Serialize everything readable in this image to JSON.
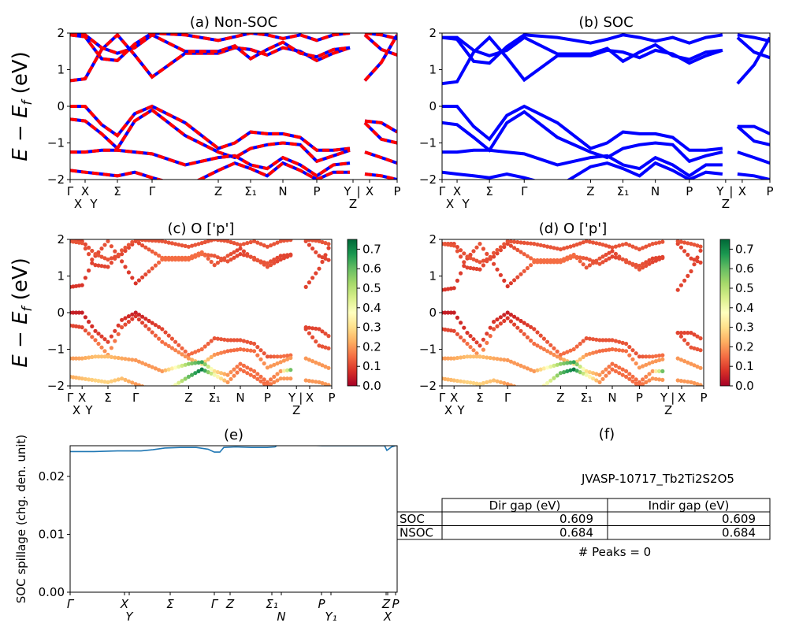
{
  "chart_data": [
    {
      "id": "a",
      "type": "line",
      "title": "(a) Non-SOC",
      "ylabel": {
        "main": "E − E",
        "sub": "f",
        "tail": " (eV)"
      },
      "ylim": [
        -2,
        2
      ],
      "yticks": [
        {
          "v": -2,
          "t": "−2"
        },
        {
          "v": -1,
          "t": "−1"
        },
        {
          "v": 0,
          "t": "0"
        },
        {
          "v": 1,
          "t": "1"
        },
        {
          "v": 2,
          "t": "2"
        }
      ],
      "xlim": [
        0,
        4.15
      ],
      "colors": {
        "line": "#0000ff",
        "dash": "#ff0000"
      },
      "kpath": "main",
      "bands": "nsoc"
    },
    {
      "id": "b",
      "type": "line",
      "title": "(b) SOC",
      "ylim": [
        -2,
        2
      ],
      "yticks": [
        {
          "v": -2,
          "t": "−2"
        },
        {
          "v": -1,
          "t": "−1"
        },
        {
          "v": 0,
          "t": "0"
        },
        {
          "v": 1,
          "t": "1"
        },
        {
          "v": 2,
          "t": "2"
        }
      ],
      "xlim": [
        0,
        4.15
      ],
      "colors": {
        "line": "#0000ff"
      },
      "kpath": "main",
      "bands": "soc"
    },
    {
      "id": "c",
      "type": "scatter",
      "title": "(c)  O ['p']",
      "ylabel": {
        "main": "E − E",
        "sub": "f",
        "tail": " (eV)"
      },
      "ylim": [
        -2,
        2
      ],
      "yticks": [
        {
          "v": -2,
          "t": "−2"
        },
        {
          "v": -1,
          "t": "−1"
        },
        {
          "v": 0,
          "t": "0"
        },
        {
          "v": 1,
          "t": "1"
        },
        {
          "v": 2,
          "t": "2"
        }
      ],
      "xlim": [
        0,
        4.15
      ],
      "kpath": "main",
      "bands": "nsoc",
      "colormap": "RdYlGn",
      "clim": [
        0,
        0.75
      ],
      "cticks": [
        "0.0",
        "0.1",
        "0.2",
        "0.3",
        "0.4",
        "0.5",
        "0.6",
        "0.7"
      ]
    },
    {
      "id": "d",
      "type": "scatter",
      "title": "(d) O ['p']",
      "ylim": [
        -2,
        2
      ],
      "yticks": [
        {
          "v": -2,
          "t": "−2"
        },
        {
          "v": -1,
          "t": "−1"
        },
        {
          "v": 0,
          "t": "0"
        },
        {
          "v": 1,
          "t": "1"
        },
        {
          "v": 2,
          "t": "2"
        }
      ],
      "xlim": [
        0,
        4.15
      ],
      "kpath": "main",
      "bands": "soc",
      "colormap": "RdYlGn",
      "clim": [
        0,
        0.75
      ],
      "cticks": [
        "0.0",
        "0.1",
        "0.2",
        "0.3",
        "0.4",
        "0.5",
        "0.6",
        "0.7"
      ]
    },
    {
      "id": "e",
      "type": "line",
      "title": "(e)",
      "ylabel": "SOC spillage (chg. den. unit)",
      "ylim": [
        0,
        0.0253
      ],
      "yticks": [
        {
          "v": 0,
          "t": "0.00"
        },
        {
          "v": 0.01,
          "t": "0.01"
        },
        {
          "v": 0.02,
          "t": "0.02"
        }
      ],
      "xlim": [
        0,
        4.15
      ],
      "color": "#1f77b4",
      "xticks": [
        {
          "k": 0,
          "t": "Γ"
        },
        {
          "k": 0.69,
          "t": "X"
        },
        {
          "k": 0.75,
          "t": "Y"
        },
        {
          "k": 1.27,
          "t": "Σ"
        },
        {
          "k": 1.83,
          "t": "Γ"
        },
        {
          "k": 2.03,
          "t": "Z"
        },
        {
          "k": 2.56,
          "t": "Σ₁"
        },
        {
          "k": 2.68,
          "t": "N"
        },
        {
          "k": 3.19,
          "t": "P"
        },
        {
          "k": 3.31,
          "t": "Y₁"
        },
        {
          "k": 4.01,
          "t": "Z"
        },
        {
          "k": 4.03,
          "t": "X"
        },
        {
          "k": 4.13,
          "t": "P"
        }
      ],
      "x": [
        0,
        0.3,
        0.6,
        0.9,
        1.05,
        1.2,
        1.4,
        1.6,
        1.75,
        1.83,
        1.9,
        1.95,
        2.1,
        2.3,
        2.5,
        2.6,
        2.65,
        2.8,
        3.0,
        3.2,
        3.4,
        3.6,
        3.8,
        3.99,
        4.02,
        4.08,
        4.15
      ],
      "y": [
        0.0243,
        0.0243,
        0.0244,
        0.0244,
        0.0246,
        0.0249,
        0.025,
        0.025,
        0.0247,
        0.0242,
        0.0242,
        0.025,
        0.0251,
        0.025,
        0.025,
        0.0251,
        0.0256,
        0.0255,
        0.0254,
        0.0253,
        0.0253,
        0.0253,
        0.0253,
        0.0253,
        0.0245,
        0.0251,
        0.0254
      ]
    },
    {
      "id": "f",
      "type": "table",
      "title": "(f)",
      "material": "JVASP-10717_Tb2Ti2S2O5",
      "columns": [
        "Dir gap (eV)",
        "Indir gap (eV)"
      ],
      "rows": [
        {
          "label": "SOC",
          "values": [
            "0.609",
            "0.609"
          ]
        },
        {
          "label": "NSOC",
          "values": [
            "0.684",
            "0.684"
          ]
        }
      ],
      "footer": "# Peaks = 0"
    }
  ],
  "kpaths": {
    "main": [
      {
        "k": 0,
        "t": "Γ",
        "tick": true
      },
      {
        "k": 0.1,
        "t": "X",
        "tick": false
      },
      {
        "k": 0.19,
        "t": "X",
        "tick": true
      },
      {
        "k": 0.3,
        "t": "Y",
        "tick": false
      },
      {
        "k": 0.6,
        "t": "Σ",
        "tick": true
      },
      {
        "k": 1.04,
        "t": "Γ",
        "tick": true
      },
      {
        "k": 1.88,
        "t": "Z",
        "tick": true
      },
      {
        "k": 2.29,
        "t": "Σ₁",
        "tick": true
      },
      {
        "k": 2.7,
        "t": "N",
        "tick": true
      },
      {
        "k": 3.13,
        "t": "P",
        "tick": true
      },
      {
        "k": 3.52,
        "t": "Y",
        "tick": false
      },
      {
        "k": 3.59,
        "t": "Z",
        "tick": true
      },
      {
        "k": 3.66,
        "t": "|",
        "tick": false
      },
      {
        "k": 3.8,
        "t": "X",
        "tick": true
      },
      {
        "k": 4.15,
        "t": "P",
        "tick": true
      }
    ]
  },
  "band_k": [
    0,
    0.19,
    0.4,
    0.6,
    0.82,
    1.04,
    1.46,
    1.88,
    2.09,
    2.29,
    2.5,
    2.7,
    2.92,
    3.13,
    3.34,
    3.55,
    3.65,
    3.74,
    3.95,
    4.15
  ],
  "bands": {
    "nsoc": [
      {
        "e": [
          0.7,
          0.75,
          1.55,
          1.95,
          1.4,
          0.8,
          1.45,
          1.45,
          1.6,
          1.55,
          1.4,
          1.6,
          1.5,
          1.25,
          1.45,
          1.6,
          null,
          0.7,
          1.2,
          1.95
        ],
        "w": [
          0.08,
          0.08,
          0.1,
          0.12,
          0.1,
          0.08,
          0.15,
          0.15,
          0.15,
          0.12,
          0.12,
          0.1,
          0.12,
          0.12,
          0.1,
          0.1,
          null,
          0.1,
          0.1,
          0.1
        ]
      },
      {
        "e": [
          1.95,
          1.95,
          1.6,
          1.45,
          1.6,
          1.95,
          1.5,
          1.5,
          1.65,
          1.3,
          1.55,
          1.75,
          1.45,
          1.35,
          1.55,
          1.6,
          null,
          1.95,
          1.55,
          1.4
        ],
        "w": [
          0.1,
          0.1,
          0.12,
          0.12,
          0.1,
          0.1,
          0.15,
          0.15,
          0.15,
          0.12,
          0.12,
          0.1,
          0.12,
          0.12,
          0.1,
          0.1,
          null,
          0.1,
          0.1,
          0.1
        ]
      },
      {
        "e": [
          1.95,
          1.9,
          1.3,
          1.25,
          1.7,
          2.0,
          1.95,
          1.8,
          1.9,
          2.0,
          1.95,
          1.85,
          1.95,
          1.8,
          1.95,
          2.0,
          null,
          2.0,
          1.95,
          1.85
        ],
        "w": [
          0.12,
          0.12,
          0.1,
          0.1,
          0.12,
          0.12,
          0.12,
          0.12,
          0.12,
          0.12,
          0.12,
          0.12,
          0.12,
          0.12,
          0.12,
          0.12,
          null,
          0.12,
          0.12,
          0.12
        ]
      },
      {
        "e": [
          0.0,
          0.0,
          -0.5,
          -0.8,
          -0.2,
          0.0,
          -0.45,
          -1.15,
          -1.0,
          -0.7,
          -0.75,
          -0.75,
          -0.85,
          -1.2,
          -1.2,
          -1.15,
          null,
          -0.4,
          -0.45,
          -0.7
        ],
        "w": [
          0.05,
          0.05,
          0.08,
          0.1,
          0.08,
          0.05,
          0.1,
          0.15,
          0.15,
          0.12,
          0.12,
          0.12,
          0.12,
          0.12,
          0.15,
          0.15,
          null,
          0.1,
          0.1,
          0.12
        ]
      },
      {
        "e": [
          -0.35,
          -0.4,
          -0.75,
          -1.15,
          -0.4,
          -0.1,
          -0.8,
          -1.25,
          -1.4,
          -1.15,
          -1.05,
          -1.0,
          -1.05,
          -1.5,
          -1.35,
          -1.2,
          null,
          -0.45,
          -0.9,
          -1.0
        ],
        "w": [
          0.1,
          0.1,
          0.15,
          0.2,
          0.12,
          0.08,
          0.15,
          0.2,
          0.3,
          0.2,
          0.15,
          0.15,
          0.15,
          0.2,
          0.2,
          0.2,
          null,
          0.1,
          0.12,
          0.12
        ]
      },
      {
        "e": [
          -1.25,
          -1.25,
          -1.2,
          -1.2,
          -1.25,
          -1.3,
          -1.6,
          -1.4,
          -1.35,
          -1.6,
          -1.7,
          -1.4,
          -1.6,
          -1.9,
          -1.6,
          -1.55,
          null,
          -1.25,
          -1.4,
          -1.55
        ],
        "w": [
          0.2,
          0.22,
          0.25,
          0.25,
          0.22,
          0.2,
          0.2,
          0.55,
          0.65,
          0.3,
          0.2,
          0.15,
          0.15,
          0.15,
          0.2,
          0.72,
          null,
          0.2,
          0.2,
          0.2
        ]
      },
      {
        "e": [
          -1.75,
          -1.8,
          -1.85,
          -1.9,
          -1.8,
          -1.95,
          -2.2,
          -1.75,
          -1.55,
          -1.7,
          -1.9,
          -1.55,
          -1.75,
          -2.0,
          -1.8,
          -1.8,
          null,
          -1.85,
          -1.9,
          -2.0
        ],
        "w": [
          0.22,
          0.25,
          0.28,
          0.28,
          0.25,
          0.2,
          0.2,
          0.6,
          0.72,
          0.4,
          0.2,
          0.15,
          0.15,
          0.15,
          0.2,
          0.2,
          null,
          0.2,
          0.2,
          0.2
        ]
      }
    ],
    "soc": [
      {
        "e": [
          0.62,
          0.67,
          1.48,
          1.88,
          1.33,
          0.72,
          1.38,
          1.38,
          1.53,
          1.48,
          1.33,
          1.53,
          1.43,
          1.18,
          1.38,
          1.53,
          null,
          0.62,
          1.13,
          1.88
        ],
        "w": [
          0.08,
          0.08,
          0.1,
          0.12,
          0.1,
          0.08,
          0.15,
          0.15,
          0.15,
          0.12,
          0.12,
          0.1,
          0.12,
          0.12,
          0.1,
          0.1,
          null,
          0.1,
          0.1,
          0.1
        ]
      },
      {
        "e": [
          1.88,
          1.88,
          1.53,
          1.38,
          1.53,
          1.88,
          1.43,
          1.43,
          1.58,
          1.23,
          1.48,
          1.68,
          1.38,
          1.28,
          1.48,
          1.53,
          null,
          1.88,
          1.48,
          1.33
        ],
        "w": [
          0.1,
          0.1,
          0.12,
          0.12,
          0.1,
          0.1,
          0.15,
          0.15,
          0.15,
          0.12,
          0.12,
          0.1,
          0.12,
          0.12,
          0.1,
          0.1,
          null,
          0.1,
          0.1,
          0.1
        ]
      },
      {
        "e": [
          1.88,
          1.83,
          1.23,
          1.18,
          1.63,
          1.95,
          1.88,
          1.73,
          1.83,
          1.95,
          1.88,
          1.78,
          1.88,
          1.73,
          1.88,
          1.95,
          null,
          1.95,
          1.88,
          1.78
        ],
        "w": [
          0.12,
          0.12,
          0.1,
          0.1,
          0.12,
          0.12,
          0.12,
          0.12,
          0.12,
          0.12,
          0.12,
          0.12,
          0.12,
          0.12,
          0.12,
          0.12,
          null,
          0.12,
          0.12,
          0.12
        ]
      },
      {
        "e": [
          0.0,
          0.0,
          -0.55,
          -0.9,
          -0.25,
          0.0,
          -0.45,
          -1.15,
          -1.0,
          -0.7,
          -0.75,
          -0.75,
          -0.85,
          -1.2,
          -1.2,
          -1.15,
          null,
          -0.55,
          -0.55,
          -0.75
        ],
        "w": [
          0.05,
          0.05,
          0.08,
          0.1,
          0.08,
          0.05,
          0.1,
          0.15,
          0.15,
          0.12,
          0.12,
          0.12,
          0.12,
          0.12,
          0.15,
          0.15,
          null,
          0.1,
          0.1,
          0.12
        ]
      },
      {
        "e": [
          -0.45,
          -0.5,
          -0.85,
          -1.2,
          -0.45,
          -0.15,
          -0.85,
          -1.25,
          -1.4,
          -1.15,
          -1.05,
          -1.0,
          -1.05,
          -1.5,
          -1.35,
          -1.25,
          null,
          -0.55,
          -0.95,
          -1.05
        ],
        "w": [
          0.1,
          0.1,
          0.15,
          0.2,
          0.12,
          0.08,
          0.15,
          0.2,
          0.3,
          0.2,
          0.15,
          0.15,
          0.15,
          0.2,
          0.2,
          0.2,
          null,
          0.1,
          0.12,
          0.12
        ]
      },
      {
        "e": [
          -1.25,
          -1.25,
          -1.2,
          -1.2,
          -1.25,
          -1.3,
          -1.6,
          -1.4,
          -1.35,
          -1.6,
          -1.7,
          -1.4,
          -1.6,
          -1.9,
          -1.6,
          -1.6,
          null,
          -1.25,
          -1.4,
          -1.55
        ],
        "w": [
          0.2,
          0.22,
          0.25,
          0.25,
          0.22,
          0.2,
          0.2,
          0.55,
          0.65,
          0.3,
          0.2,
          0.15,
          0.15,
          0.15,
          0.2,
          0.72,
          null,
          0.2,
          0.2,
          0.2
        ]
      },
      {
        "e": [
          -1.8,
          -1.85,
          -1.9,
          -1.95,
          -1.85,
          -1.95,
          -2.2,
          -1.65,
          -1.55,
          -1.7,
          -1.9,
          -1.55,
          -1.75,
          -2.0,
          -1.8,
          -1.85,
          null,
          -1.85,
          -1.9,
          -2.0
        ],
        "w": [
          0.22,
          0.25,
          0.28,
          0.28,
          0.25,
          0.2,
          0.2,
          0.6,
          0.72,
          0.4,
          0.2,
          0.15,
          0.15,
          0.15,
          0.2,
          0.2,
          null,
          0.2,
          0.2,
          0.2
        ]
      }
    ]
  }
}
